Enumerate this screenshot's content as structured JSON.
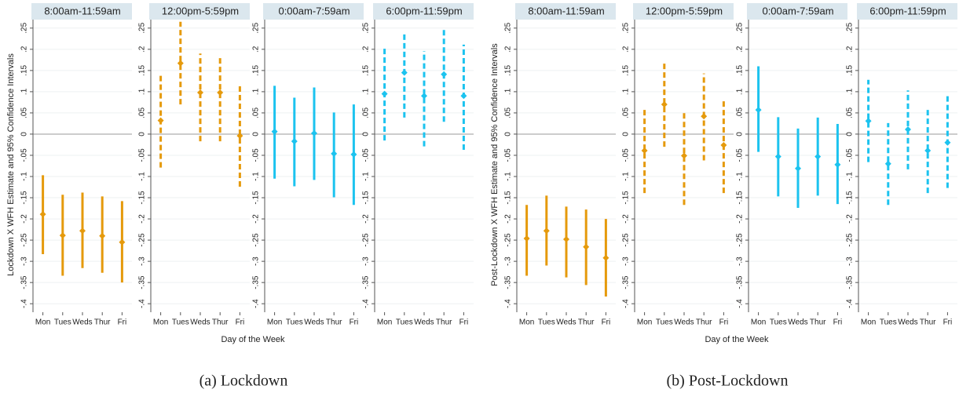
{
  "figures": [
    {
      "caption": "(a) Lockdown",
      "ylabel": "Lockdown X WFH Estimate and 95% Confidence Intervals",
      "xlabel": "Day of the Week"
    },
    {
      "caption": "(b) Post-Lockdown",
      "ylabel": "Post-Lockdown X WFH Estimate and 95% Confidence Intervals",
      "xlabel": "Day of the Week"
    }
  ],
  "chart_data": [
    {
      "type": "errorbar",
      "title": "8:00am-11:59am",
      "categories": [
        "Mon",
        "Tues",
        "Weds",
        "Thur",
        "Fri"
      ],
      "values": [
        -0.189,
        -0.239,
        -0.228,
        -0.24,
        -0.255
      ],
      "ci_low": [
        -0.283,
        -0.334,
        -0.316,
        -0.327,
        -0.35
      ],
      "ci_high": [
        -0.097,
        -0.143,
        -0.138,
        -0.147,
        -0.158
      ],
      "color": "#e59a0c",
      "dashed": false,
      "ylim": [
        -0.42,
        0.27
      ],
      "yticks": [
        {
          "value": 0.25,
          "label": ".25"
        },
        {
          "value": 0.2,
          "label": ".2"
        },
        {
          "value": 0.15,
          "label": ".15"
        },
        {
          "value": 0.1,
          "label": ".1"
        },
        {
          "value": 0.05,
          "label": ".05"
        },
        0,
        {
          "value": -0.05,
          "label": "-.05"
        },
        {
          "value": -0.1,
          "label": "-.1"
        },
        {
          "value": -0.15,
          "label": "-.15"
        },
        {
          "value": -0.2,
          "label": "-.2"
        },
        {
          "value": -0.25,
          "label": "-.25"
        },
        {
          "value": -0.3,
          "label": "-.3"
        },
        {
          "value": -0.35,
          "label": "-.35"
        },
        {
          "value": -0.4,
          "label": "-.4"
        }
      ],
      "grid": true
    },
    {
      "type": "errorbar",
      "title": "12:00pm-5:59pm",
      "categories": [
        "Mon",
        "Tues",
        "Weds",
        "Thur",
        "Fri"
      ],
      "values": [
        0.032,
        0.167,
        0.098,
        0.098,
        -0.004
      ],
      "ci_low": [
        -0.079,
        0.07,
        -0.017,
        -0.017,
        -0.124
      ],
      "ci_high": [
        0.139,
        0.265,
        0.19,
        0.185,
        0.118
      ],
      "color": "#e59a0c",
      "dashed": true,
      "ylim": [
        -0.42,
        0.27
      ],
      "yticks": [
        {
          "value": 0.25,
          "label": ".25"
        },
        {
          "value": 0.2,
          "label": ".2"
        },
        {
          "value": 0.15,
          "label": ".15"
        },
        {
          "value": 0.1,
          "label": ".1"
        },
        {
          "value": 0.05,
          "label": ".05"
        },
        0,
        {
          "value": -0.05,
          "label": "-.05"
        },
        {
          "value": -0.1,
          "label": "-.1"
        },
        {
          "value": -0.15,
          "label": "-.15"
        },
        {
          "value": -0.2,
          "label": "-.2"
        },
        {
          "value": -0.25,
          "label": "-.25"
        },
        {
          "value": -0.3,
          "label": "-.3"
        },
        {
          "value": -0.35,
          "label": "-.35"
        },
        {
          "value": -0.4,
          "label": "-.4"
        }
      ],
      "grid": true
    },
    {
      "type": "errorbar",
      "title": "0:00am-7:59am",
      "categories": [
        "Mon",
        "Tues",
        "Weds",
        "Thur",
        "Fri"
      ],
      "values": [
        0.006,
        -0.017,
        0.002,
        -0.046,
        -0.048
      ],
      "ci_low": [
        -0.105,
        -0.123,
        -0.108,
        -0.149,
        -0.167
      ],
      "ci_high": [
        0.114,
        0.086,
        0.11,
        0.051,
        0.07
      ],
      "color": "#1cc3ef",
      "dashed": false,
      "ylim": [
        -0.42,
        0.27
      ],
      "yticks": [
        {
          "value": 0.25,
          "label": ".25"
        },
        {
          "value": 0.2,
          "label": ".2"
        },
        {
          "value": 0.15,
          "label": ".15"
        },
        {
          "value": 0.1,
          "label": ".1"
        },
        {
          "value": 0.05,
          "label": ".05"
        },
        0,
        {
          "value": -0.05,
          "label": "-.05"
        },
        {
          "value": -0.1,
          "label": "-.1"
        },
        {
          "value": -0.15,
          "label": "-.15"
        },
        {
          "value": -0.2,
          "label": "-.2"
        },
        {
          "value": -0.25,
          "label": "-.25"
        },
        {
          "value": -0.3,
          "label": "-.3"
        },
        {
          "value": -0.35,
          "label": "-.35"
        },
        {
          "value": -0.4,
          "label": "-.4"
        }
      ],
      "grid": true
    },
    {
      "type": "errorbar",
      "title": "6:00pm-11:59pm",
      "categories": [
        "Mon",
        "Tues",
        "Weds",
        "Thur",
        "Fri"
      ],
      "values": [
        0.095,
        0.145,
        0.09,
        0.141,
        0.09
      ],
      "ci_low": [
        -0.015,
        0.039,
        -0.029,
        0.029,
        -0.037
      ],
      "ci_high": [
        0.204,
        0.24,
        0.196,
        0.253,
        0.211
      ],
      "color": "#1cc3ef",
      "dashed": true,
      "ylim": [
        -0.42,
        0.27
      ],
      "yticks": [
        {
          "value": 0.25,
          "label": ".25"
        },
        {
          "value": 0.2,
          "label": ".2"
        },
        {
          "value": 0.15,
          "label": ".15"
        },
        {
          "value": 0.1,
          "label": ".1"
        },
        {
          "value": 0.05,
          "label": ".05"
        },
        0,
        {
          "value": -0.05,
          "label": "-.05"
        },
        {
          "value": -0.1,
          "label": "-.1"
        },
        {
          "value": -0.15,
          "label": "-.15"
        },
        {
          "value": -0.2,
          "label": "-.2"
        },
        {
          "value": -0.25,
          "label": "-.25"
        },
        {
          "value": -0.3,
          "label": "-.3"
        },
        {
          "value": -0.35,
          "label": "-.35"
        },
        {
          "value": -0.4,
          "label": "-.4"
        }
      ],
      "grid": true
    },
    {
      "type": "errorbar",
      "title": "8:00am-11:59am",
      "categories": [
        "Mon",
        "Tues",
        "Weds",
        "Thur",
        "Fri"
      ],
      "values": [
        -0.246,
        -0.228,
        -0.248,
        -0.266,
        -0.292
      ],
      "ci_low": [
        -0.334,
        -0.31,
        -0.338,
        -0.356,
        -0.383
      ],
      "ci_high": [
        -0.167,
        -0.145,
        -0.171,
        -0.178,
        -0.2
      ],
      "color": "#e59a0c",
      "dashed": false,
      "ylim": [
        -0.42,
        0.27
      ],
      "yticks": [
        {
          "value": 0.25,
          "label": ".25"
        },
        {
          "value": 0.2,
          "label": ".2"
        },
        {
          "value": 0.15,
          "label": ".15"
        },
        {
          "value": 0.1,
          "label": ".1"
        },
        {
          "value": 0.05,
          "label": ".05"
        },
        0,
        {
          "value": -0.05,
          "label": "-.05"
        },
        {
          "value": -0.1,
          "label": "-.1"
        },
        {
          "value": -0.15,
          "label": "-.15"
        },
        {
          "value": -0.2,
          "label": "-.2"
        },
        {
          "value": -0.25,
          "label": "-.25"
        },
        {
          "value": -0.3,
          "label": "-.3"
        },
        {
          "value": -0.35,
          "label": "-.35"
        },
        {
          "value": -0.4,
          "label": "-.4"
        }
      ],
      "grid": true
    },
    {
      "type": "errorbar",
      "title": "12:00pm-5:59pm",
      "categories": [
        "Mon",
        "Tues",
        "Weds",
        "Thur",
        "Fri"
      ],
      "values": [
        -0.039,
        0.07,
        -0.051,
        0.042,
        -0.026
      ],
      "ci_low": [
        -0.139,
        -0.03,
        -0.167,
        -0.062,
        -0.139
      ],
      "ci_high": [
        0.057,
        0.167,
        0.055,
        0.143,
        0.084
      ],
      "color": "#e59a0c",
      "dashed": true,
      "ylim": [
        -0.42,
        0.27
      ],
      "yticks": [
        {
          "value": 0.25,
          "label": ".25"
        },
        {
          "value": 0.2,
          "label": ".2"
        },
        {
          "value": 0.15,
          "label": ".15"
        },
        {
          "value": 0.1,
          "label": ".1"
        },
        {
          "value": 0.05,
          "label": ".05"
        },
        0,
        {
          "value": -0.05,
          "label": "-.05"
        },
        {
          "value": -0.1,
          "label": "-.1"
        },
        {
          "value": -0.15,
          "label": "-.15"
        },
        {
          "value": -0.2,
          "label": "-.2"
        },
        {
          "value": -0.25,
          "label": "-.25"
        },
        {
          "value": -0.3,
          "label": "-.3"
        },
        {
          "value": -0.35,
          "label": "-.35"
        },
        {
          "value": -0.4,
          "label": "-.4"
        }
      ],
      "grid": true
    },
    {
      "type": "errorbar",
      "title": "0:00am-7:59am",
      "categories": [
        "Mon",
        "Tues",
        "Weds",
        "Thur",
        "Fri"
      ],
      "values": [
        0.057,
        -0.053,
        -0.081,
        -0.053,
        -0.072
      ],
      "ci_low": [
        -0.042,
        -0.147,
        -0.174,
        -0.145,
        -0.165
      ],
      "ci_high": [
        0.16,
        0.04,
        0.013,
        0.039,
        0.024
      ],
      "color": "#1cc3ef",
      "dashed": false,
      "ylim": [
        -0.42,
        0.27
      ],
      "yticks": [
        {
          "value": 0.25,
          "label": ".25"
        },
        {
          "value": 0.2,
          "label": ".2"
        },
        {
          "value": 0.15,
          "label": ".15"
        },
        {
          "value": 0.1,
          "label": ".1"
        },
        {
          "value": 0.05,
          "label": ".05"
        },
        0,
        {
          "value": -0.05,
          "label": "-.05"
        },
        {
          "value": -0.1,
          "label": "-.1"
        },
        {
          "value": -0.15,
          "label": "-.15"
        },
        {
          "value": -0.2,
          "label": "-.2"
        },
        {
          "value": -0.25,
          "label": "-.25"
        },
        {
          "value": -0.3,
          "label": "-.3"
        },
        {
          "value": -0.35,
          "label": "-.35"
        },
        {
          "value": -0.4,
          "label": "-.4"
        }
      ],
      "grid": true
    },
    {
      "type": "errorbar",
      "title": "6:00pm-11:59pm",
      "categories": [
        "Mon",
        "Tues",
        "Weds",
        "Thur",
        "Fri"
      ],
      "values": [
        0.031,
        -0.07,
        0.011,
        -0.039,
        -0.02
      ],
      "ci_low": [
        -0.066,
        -0.167,
        -0.083,
        -0.139,
        -0.127
      ],
      "ci_high": [
        0.128,
        0.026,
        0.103,
        0.058,
        0.092
      ],
      "color": "#1cc3ef",
      "dashed": true,
      "ylim": [
        -0.42,
        0.27
      ],
      "yticks": [
        {
          "value": 0.25,
          "label": ".25"
        },
        {
          "value": 0.2,
          "label": ".2"
        },
        {
          "value": 0.15,
          "label": ".15"
        },
        {
          "value": 0.1,
          "label": ".1"
        },
        {
          "value": 0.05,
          "label": ".05"
        },
        0,
        {
          "value": -0.05,
          "label": "-.05"
        },
        {
          "value": -0.1,
          "label": "-.1"
        },
        {
          "value": -0.15,
          "label": "-.15"
        },
        {
          "value": -0.2,
          "label": "-.2"
        },
        {
          "value": -0.25,
          "label": "-.25"
        },
        {
          "value": -0.3,
          "label": "-.3"
        },
        {
          "value": -0.35,
          "label": "-.35"
        },
        {
          "value": -0.4,
          "label": "-.4"
        }
      ],
      "grid": true
    }
  ]
}
